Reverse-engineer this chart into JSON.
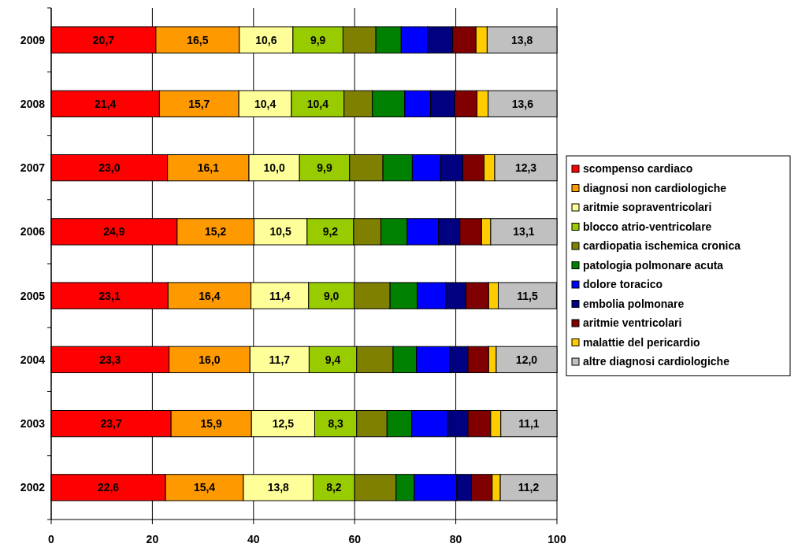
{
  "chart_data": {
    "type": "bar",
    "orientation": "horizontal",
    "stacked": true,
    "categories": [
      "2009",
      "2008",
      "2007",
      "2006",
      "2005",
      "2004",
      "2003",
      "2002"
    ],
    "xlim": [
      0,
      100
    ],
    "xticks": [
      0,
      20,
      40,
      60,
      80,
      100
    ],
    "grid": "x",
    "legend": "right",
    "series": [
      {
        "name": "scompenso cardiaco",
        "color": "#ff0000",
        "values": [
          20.7,
          21.4,
          23.0,
          24.9,
          23.1,
          23.3,
          23.7,
          22.6
        ],
        "value_labels": [
          "20,7",
          "21,4",
          "23,0",
          "24,9",
          "23,1",
          "23,3",
          "23,7",
          "22,6"
        ]
      },
      {
        "name": "diagnosi non cardiologiche",
        "color": "#ff9900",
        "values": [
          16.5,
          15.7,
          16.1,
          15.2,
          16.4,
          16.0,
          15.9,
          15.4
        ],
        "value_labels": [
          "16,5",
          "15,7",
          "16,1",
          "15,2",
          "16,4",
          "16,0",
          "15,9",
          "15,4"
        ]
      },
      {
        "name": "aritmie sopraventricolari",
        "color": "#ffff99",
        "values": [
          10.6,
          10.4,
          10.0,
          10.5,
          11.4,
          11.7,
          12.5,
          13.8
        ],
        "value_labels": [
          "10,6",
          "10,4",
          "10,0",
          "10,5",
          "11,4",
          "11,7",
          "12,5",
          "13,8"
        ]
      },
      {
        "name": "blocco atrio-ventricolare",
        "color": "#99cc00",
        "values": [
          9.9,
          10.4,
          9.9,
          9.2,
          9.0,
          9.4,
          8.3,
          8.2
        ],
        "value_labels": [
          "9,9",
          "10,4",
          "9,9",
          "9,2",
          "9,0",
          "9,4",
          "8,3",
          "8,2"
        ]
      },
      {
        "name": "cardiopatia ischemica cronica",
        "color": "#808000",
        "values": [
          6.5,
          5.6,
          6.6,
          5.4,
          7.1,
          7.2,
          6.0,
          8.2
        ]
      },
      {
        "name": "patologia polmonare acuta",
        "color": "#008000",
        "values": [
          5.0,
          6.4,
          5.8,
          5.2,
          5.4,
          4.6,
          4.9,
          3.6
        ]
      },
      {
        "name": "dolore toracico",
        "color": "#0000ff",
        "values": [
          5.2,
          5.1,
          5.6,
          6.2,
          5.6,
          6.6,
          7.1,
          8.4
        ]
      },
      {
        "name": "embolia polmonare",
        "color": "#000080",
        "values": [
          5.0,
          4.8,
          4.4,
          4.2,
          4.0,
          3.6,
          4.0,
          2.9
        ]
      },
      {
        "name": "aritmie ventricolari",
        "color": "#800000",
        "values": [
          4.6,
          4.4,
          4.2,
          4.3,
          4.5,
          4.1,
          4.5,
          4.1
        ]
      },
      {
        "name": "malattie del pericardio",
        "color": "#ffcc00",
        "values": [
          2.2,
          2.2,
          2.1,
          1.8,
          1.9,
          1.5,
          2.0,
          1.6
        ]
      },
      {
        "name": "altre diagnosi cardiologiche",
        "color": "#c0c0c0",
        "values": [
          13.8,
          13.6,
          12.3,
          13.1,
          11.5,
          12.0,
          11.1,
          11.2
        ],
        "value_labels": [
          "13,8",
          "13,6",
          "12,3",
          "13,1",
          "11,5",
          "12,0",
          "11,1",
          "11,2"
        ]
      }
    ]
  }
}
